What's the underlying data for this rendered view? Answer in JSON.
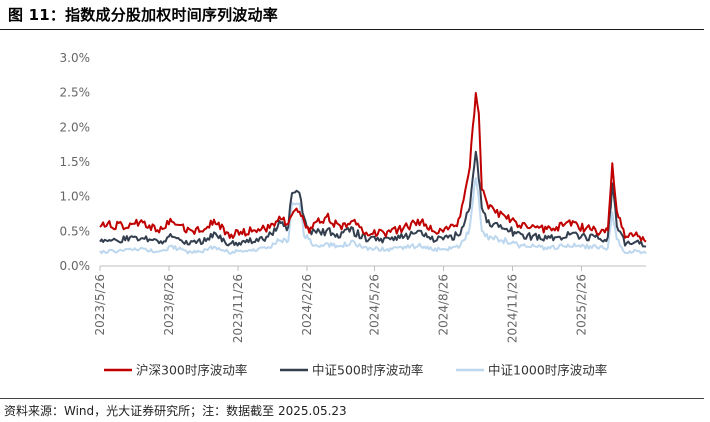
{
  "figure": {
    "title": "图 11：指数成分股加权时间序列波动率",
    "source": "资料来源：Wind，光大证券研究所；注：数据截至 2025.05.23"
  },
  "chart_data": {
    "type": "line",
    "yticks": [
      "0.0%",
      "0.5%",
      "1.0%",
      "1.5%",
      "2.0%",
      "2.5%",
      "3.0%"
    ],
    "ylim": [
      0,
      3.0
    ],
    "xticks": [
      "2023/5/26",
      "2023/8/26",
      "2023/11/26",
      "2024/2/26",
      "2024/5/26",
      "2024/8/26",
      "2024/11/26",
      "2025/2/26"
    ],
    "xrange": [
      "2023/5/26",
      "2025/5/23"
    ],
    "grid": false,
    "legend_position": "bottom",
    "series": [
      {
        "name": "沪深300时序波动率",
        "color": "#C00000",
        "points": [
          [
            "2023/5/26",
            0.6
          ],
          [
            "2023/6/20",
            0.58
          ],
          [
            "2023/7/20",
            0.62
          ],
          [
            "2023/8/15",
            0.52
          ],
          [
            "2023/8/30",
            0.66
          ],
          [
            "2023/9/20",
            0.5
          ],
          [
            "2023/10/10",
            0.55
          ],
          [
            "2023/10/25",
            0.65
          ],
          [
            "2023/11/15",
            0.45
          ],
          [
            "2023/12/10",
            0.5
          ],
          [
            "2024/1/5",
            0.55
          ],
          [
            "2024/1/20",
            0.7
          ],
          [
            "2024/2/1",
            0.62
          ],
          [
            "2024/2/8",
            0.8
          ],
          [
            "2024/2/20",
            0.72
          ],
          [
            "2024/2/29",
            0.5
          ],
          [
            "2024/3/10",
            0.62
          ],
          [
            "2024/3/25",
            0.7
          ],
          [
            "2024/4/10",
            0.55
          ],
          [
            "2024/4/25",
            0.65
          ],
          [
            "2024/5/15",
            0.5
          ],
          [
            "2024/6/10",
            0.48
          ],
          [
            "2024/7/5",
            0.55
          ],
          [
            "2024/7/25",
            0.65
          ],
          [
            "2024/8/15",
            0.5
          ],
          [
            "2024/9/1",
            0.55
          ],
          [
            "2024/9/15",
            0.62
          ],
          [
            "2024/9/24",
            1.1
          ],
          [
            "2024/9/30",
            1.45
          ],
          [
            "2024/10/8",
            2.5
          ],
          [
            "2024/10/12",
            2.2
          ],
          [
            "2024/10/16",
            1.1
          ],
          [
            "2024/10/25",
            0.85
          ],
          [
            "2024/11/10",
            0.75
          ],
          [
            "2024/12/5",
            0.6
          ],
          [
            "2024/12/25",
            0.55
          ],
          [
            "2025/1/15",
            0.52
          ],
          [
            "2025/2/10",
            0.6
          ],
          [
            "2025/3/1",
            0.55
          ],
          [
            "2025/3/25",
            0.5
          ],
          [
            "2025/4/2",
            0.5
          ],
          [
            "2025/4/8",
            1.45
          ],
          [
            "2025/4/14",
            0.8
          ],
          [
            "2025/4/25",
            0.45
          ],
          [
            "2025/5/10",
            0.48
          ],
          [
            "2025/5/23",
            0.35
          ]
        ]
      },
      {
        "name": "中证500时序波动率",
        "color": "#333F4F",
        "points": [
          [
            "2023/5/26",
            0.35
          ],
          [
            "2023/6/20",
            0.38
          ],
          [
            "2023/7/20",
            0.4
          ],
          [
            "2023/8/15",
            0.34
          ],
          [
            "2023/8/30",
            0.45
          ],
          [
            "2023/9/20",
            0.33
          ],
          [
            "2023/10/10",
            0.36
          ],
          [
            "2023/10/25",
            0.45
          ],
          [
            "2023/11/15",
            0.32
          ],
          [
            "2023/12/10",
            0.36
          ],
          [
            "2024/1/5",
            0.42
          ],
          [
            "2024/1/20",
            0.6
          ],
          [
            "2024/2/1",
            0.55
          ],
          [
            "2024/2/6",
            1.1
          ],
          [
            "2024/2/16",
            1.08
          ],
          [
            "2024/2/22",
            0.65
          ],
          [
            "2024/3/5",
            0.48
          ],
          [
            "2024/3/25",
            0.5
          ],
          [
            "2024/4/10",
            0.45
          ],
          [
            "2024/4/25",
            0.52
          ],
          [
            "2024/5/15",
            0.4
          ],
          [
            "2024/6/10",
            0.38
          ],
          [
            "2024/7/5",
            0.42
          ],
          [
            "2024/7/25",
            0.48
          ],
          [
            "2024/8/15",
            0.38
          ],
          [
            "2024/9/1",
            0.4
          ],
          [
            "2024/9/15",
            0.45
          ],
          [
            "2024/9/24",
            0.65
          ],
          [
            "2024/9/30",
            0.85
          ],
          [
            "2024/10/8",
            1.65
          ],
          [
            "2024/10/12",
            1.3
          ],
          [
            "2024/10/16",
            0.8
          ],
          [
            "2024/10/25",
            0.62
          ],
          [
            "2024/11/10",
            0.58
          ],
          [
            "2024/12/5",
            0.45
          ],
          [
            "2024/12/25",
            0.42
          ],
          [
            "2025/1/15",
            0.4
          ],
          [
            "2025/2/10",
            0.45
          ],
          [
            "2025/3/1",
            0.42
          ],
          [
            "2025/3/25",
            0.4
          ],
          [
            "2025/4/2",
            0.4
          ],
          [
            "2025/4/8",
            1.15
          ],
          [
            "2025/4/14",
            0.6
          ],
          [
            "2025/4/25",
            0.32
          ],
          [
            "2025/5/10",
            0.36
          ],
          [
            "2025/5/23",
            0.28
          ]
        ]
      },
      {
        "name": "中证1000时序波动率",
        "color": "#BDD7EE",
        "points": [
          [
            "2023/5/26",
            0.2
          ],
          [
            "2023/6/20",
            0.22
          ],
          [
            "2023/7/20",
            0.24
          ],
          [
            "2023/8/15",
            0.2
          ],
          [
            "2023/8/30",
            0.28
          ],
          [
            "2023/9/20",
            0.2
          ],
          [
            "2023/10/10",
            0.22
          ],
          [
            "2023/10/25",
            0.28
          ],
          [
            "2023/11/15",
            0.2
          ],
          [
            "2023/12/10",
            0.22
          ],
          [
            "2024/1/5",
            0.26
          ],
          [
            "2024/1/20",
            0.4
          ],
          [
            "2024/2/1",
            0.35
          ],
          [
            "2024/2/6",
            0.95
          ],
          [
            "2024/2/16",
            0.85
          ],
          [
            "2024/2/22",
            0.45
          ],
          [
            "2024/3/5",
            0.3
          ],
          [
            "2024/3/25",
            0.32
          ],
          [
            "2024/4/10",
            0.28
          ],
          [
            "2024/4/25",
            0.34
          ],
          [
            "2024/5/15",
            0.25
          ],
          [
            "2024/6/10",
            0.24
          ],
          [
            "2024/7/5",
            0.26
          ],
          [
            "2024/7/25",
            0.3
          ],
          [
            "2024/8/15",
            0.24
          ],
          [
            "2024/9/1",
            0.25
          ],
          [
            "2024/9/15",
            0.28
          ],
          [
            "2024/9/24",
            0.4
          ],
          [
            "2024/9/30",
            0.55
          ],
          [
            "2024/10/8",
            1.3
          ],
          [
            "2024/10/12",
            1.0
          ],
          [
            "2024/10/16",
            0.55
          ],
          [
            "2024/10/25",
            0.42
          ],
          [
            "2024/11/10",
            0.38
          ],
          [
            "2024/12/5",
            0.3
          ],
          [
            "2024/12/25",
            0.28
          ],
          [
            "2025/1/15",
            0.26
          ],
          [
            "2025/2/10",
            0.3
          ],
          [
            "2025/3/1",
            0.28
          ],
          [
            "2025/3/25",
            0.26
          ],
          [
            "2025/4/2",
            0.26
          ],
          [
            "2025/4/8",
            0.8
          ],
          [
            "2025/4/14",
            0.4
          ],
          [
            "2025/4/25",
            0.2
          ],
          [
            "2025/5/10",
            0.22
          ],
          [
            "2025/5/23",
            0.18
          ]
        ]
      }
    ]
  }
}
